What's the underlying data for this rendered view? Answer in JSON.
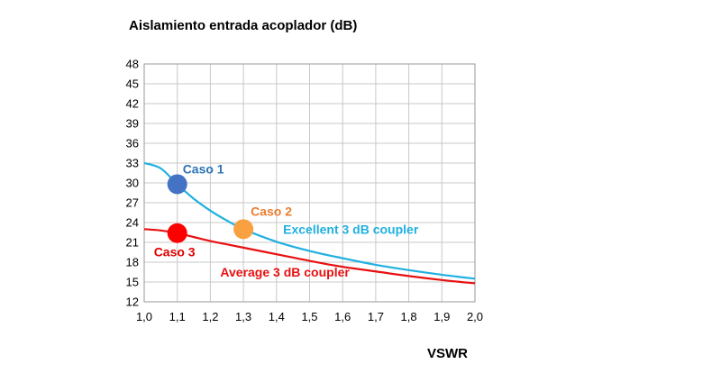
{
  "chart_data": {
    "type": "line",
    "title": "Aislamiento entrada acoplador (dB)",
    "xlabel": "VSWR",
    "ylabel": "",
    "xlim": [
      1.0,
      2.0
    ],
    "ylim": [
      12,
      48
    ],
    "x_ticks": [
      "1,0",
      "1,1",
      "1,2",
      "1,3",
      "1,4",
      "1,5",
      "1,6",
      "1,7",
      "1,8",
      "1,9",
      "2,0"
    ],
    "y_ticks": [
      "12",
      "15",
      "18",
      "21",
      "24",
      "27",
      "30",
      "33",
      "36",
      "39",
      "42",
      "45",
      "48"
    ],
    "grid": true,
    "series": [
      {
        "name": "Excellent 3 dB coupler",
        "color": "#20B0E0",
        "x": [
          1.0,
          1.05,
          1.1,
          1.15,
          1.2,
          1.25,
          1.3,
          1.4,
          1.5,
          1.6,
          1.7,
          1.8,
          1.9,
          2.0
        ],
        "y": [
          33.0,
          32.2,
          29.8,
          27.6,
          25.8,
          24.3,
          23.0,
          21.1,
          19.7,
          18.6,
          17.6,
          16.8,
          16.1,
          15.5
        ]
      },
      {
        "name": "Average 3 dB coupler",
        "color": "#E81010",
        "x": [
          1.0,
          1.05,
          1.1,
          1.15,
          1.2,
          1.25,
          1.3,
          1.4,
          1.5,
          1.6,
          1.7,
          1.8,
          1.9,
          2.0
        ],
        "y": [
          23.0,
          22.8,
          22.4,
          21.8,
          21.2,
          20.7,
          20.2,
          19.2,
          18.2,
          17.3,
          16.6,
          15.9,
          15.3,
          14.8
        ]
      }
    ],
    "points": [
      {
        "label": "Caso 1",
        "x": 1.1,
        "y": 29.8,
        "color": "#4472C4",
        "label_color": "#2E75B6"
      },
      {
        "label": "Caso 2",
        "x": 1.3,
        "y": 23.0,
        "color": "#F9A040",
        "label_color": "#ED7D31"
      },
      {
        "label": "Caso 3",
        "x": 1.1,
        "y": 22.4,
        "color": "#FF0000",
        "label_color": "#E00000"
      }
    ],
    "annotations": [
      {
        "text": "Excellent 3 dB coupler",
        "color": "#20B0E0",
        "x": 1.42,
        "y": 22.3
      },
      {
        "text": "Average 3 dB coupler",
        "color": "#E81010",
        "x": 1.23,
        "y": 15.8
      }
    ]
  }
}
